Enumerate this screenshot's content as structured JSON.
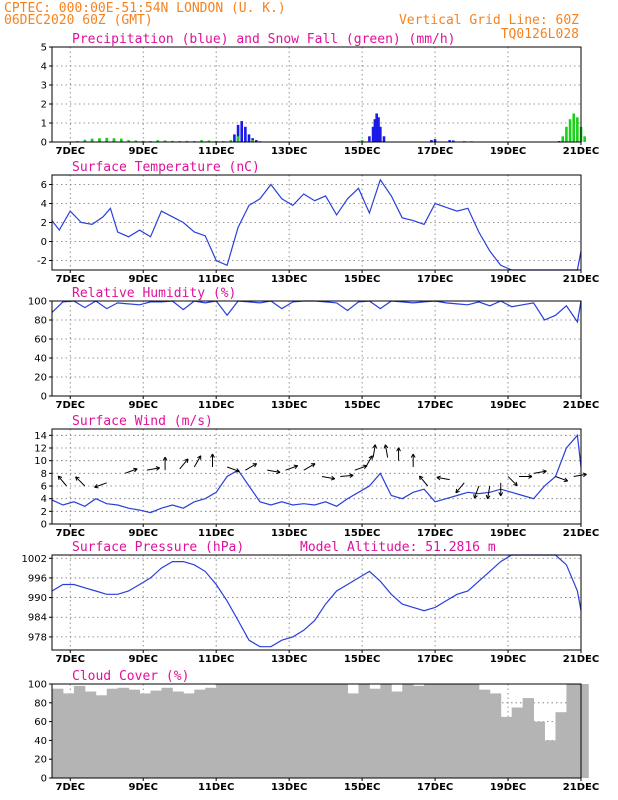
{
  "header": {
    "line1_left": "CPTEC:   000:00E-51:54N   LONDON (U. K.)",
    "line2_left": "06DEC2020 60Z (GMT)",
    "line2_right": "Vertical Grid Line: 60Z",
    "line3_right": "TQ0126L028"
  },
  "x_ticks": [
    "7DEC",
    "9DEC",
    "11DEC",
    "13DEC",
    "15DEC",
    "17DEC",
    "19DEC",
    "21DEC"
  ],
  "colors": {
    "header": "#f5821f",
    "title": "#e0119b",
    "line": "#2a3fdb",
    "rain": "#1a1ae6",
    "snow": "#1ad01a",
    "cloud": "#b4b4b4"
  },
  "chart_data": [
    {
      "type": "bar",
      "title": "Precipitation (blue) and Snow Fall (green) (mm/h)",
      "ylim": [
        0,
        5
      ],
      "yticks": [
        0,
        1,
        2,
        3,
        4,
        5
      ],
      "series": [
        {
          "name": "blue",
          "x": [
            7.4,
            7.6,
            7.8,
            8.0,
            8.2,
            8.4,
            9.0,
            9.4,
            9.6,
            10.6,
            11.5,
            11.6,
            11.7,
            11.8,
            11.9,
            12.0,
            12.1,
            15.2,
            15.3,
            15.35,
            15.4,
            15.45,
            15.5,
            15.6,
            16.9,
            17.0,
            17.4,
            17.5,
            20.4
          ],
          "values": [
            0.05,
            0.1,
            0.12,
            0.15,
            0.12,
            0.08,
            0.05,
            0.06,
            0.05,
            0.05,
            0.4,
            0.9,
            1.1,
            0.8,
            0.4,
            0.2,
            0.1,
            0.3,
            0.8,
            1.2,
            1.5,
            1.3,
            0.8,
            0.3,
            0.1,
            0.15,
            0.1,
            0.08,
            0.05
          ]
        },
        {
          "name": "green",
          "x": [
            7.2,
            7.4,
            7.6,
            7.8,
            8.0,
            8.2,
            8.4,
            8.6,
            8.8,
            9.0,
            9.2,
            9.4,
            9.6,
            9.8,
            10.0,
            10.2,
            10.4,
            10.6,
            10.8,
            11.0,
            11.2,
            11.4,
            11.6,
            12.0,
            12.2,
            14.9,
            15.0,
            15.2,
            17.8,
            18.0,
            20.5,
            20.6,
            20.7,
            20.8,
            20.9,
            21.0,
            21.1
          ],
          "values": [
            0.05,
            0.12,
            0.18,
            0.2,
            0.22,
            0.2,
            0.18,
            0.1,
            0.08,
            0.06,
            0.05,
            0.1,
            0.08,
            0.06,
            0.05,
            0.06,
            0.05,
            0.1,
            0.08,
            0.06,
            0.05,
            0.1,
            0.3,
            0.1,
            0.05,
            0.05,
            0.1,
            0.05,
            0.05,
            0.04,
            0.3,
            0.8,
            1.2,
            1.5,
            1.3,
            0.8,
            0.3
          ]
        }
      ]
    },
    {
      "type": "line",
      "title": "Surface Temperature (nC)",
      "ylim": [
        -3,
        7
      ],
      "yticks": [
        -2,
        0,
        2,
        4,
        6
      ],
      "x": [
        6.5,
        6.7,
        7.0,
        7.3,
        7.6,
        7.9,
        8.1,
        8.3,
        8.6,
        8.9,
        9.2,
        9.5,
        9.8,
        10.1,
        10.4,
        10.7,
        11.0,
        11.3,
        11.6,
        11.9,
        12.2,
        12.5,
        12.8,
        13.1,
        13.4,
        13.7,
        14.0,
        14.3,
        14.6,
        14.9,
        15.2,
        15.5,
        15.8,
        16.1,
        16.4,
        16.7,
        17.0,
        17.3,
        17.6,
        17.9,
        18.2,
        18.5,
        18.8,
        19.1,
        19.4,
        19.7,
        20.0,
        20.3,
        20.6,
        20.9,
        21.0
      ],
      "values": [
        2.2,
        1.2,
        3.2,
        2.0,
        1.8,
        2.6,
        3.5,
        1.0,
        0.5,
        1.2,
        0.5,
        3.2,
        2.6,
        2.0,
        1.0,
        0.6,
        -2.0,
        -2.5,
        1.5,
        3.8,
        4.5,
        6.0,
        4.5,
        3.8,
        5.0,
        4.3,
        4.8,
        2.8,
        4.5,
        5.6,
        3.0,
        6.5,
        4.8,
        2.5,
        2.2,
        1.8,
        4.0,
        3.6,
        3.2,
        3.5,
        1.0,
        -1.0,
        -2.5,
        -3.0,
        -3.0,
        -3.0,
        -3.0,
        -3.0,
        -3.0,
        -3.0,
        -1.0
      ]
    },
    {
      "type": "line",
      "title": "Relative Humidity (%)",
      "ylim": [
        0,
        100
      ],
      "yticks": [
        0,
        20,
        40,
        60,
        80,
        100
      ],
      "x": [
        6.5,
        6.8,
        7.1,
        7.4,
        7.7,
        8.0,
        8.3,
        8.6,
        8.9,
        9.2,
        9.5,
        9.8,
        10.1,
        10.4,
        10.7,
        11.0,
        11.3,
        11.6,
        11.9,
        12.2,
        12.5,
        12.8,
        13.1,
        13.4,
        13.7,
        14.0,
        14.3,
        14.6,
        14.9,
        15.2,
        15.5,
        15.8,
        16.1,
        16.4,
        16.7,
        17.0,
        17.3,
        17.6,
        17.9,
        18.2,
        18.5,
        18.8,
        19.1,
        19.4,
        19.7,
        20.0,
        20.3,
        20.6,
        20.9,
        21.0
      ],
      "values": [
        88,
        99,
        100,
        93,
        100,
        92,
        98,
        97,
        96,
        99,
        99,
        100,
        91,
        100,
        98,
        100,
        85,
        100,
        99,
        98,
        100,
        92,
        99,
        100,
        100,
        99,
        98,
        90,
        99,
        100,
        92,
        100,
        99,
        98,
        99,
        100,
        98,
        97,
        96,
        99,
        95,
        100,
        94,
        96,
        98,
        80,
        85,
        95,
        78,
        100
      ]
    },
    {
      "type": "line",
      "title": "Surface Wind (m/s)",
      "ylim": [
        0,
        15
      ],
      "yticks": [
        0,
        2,
        4,
        6,
        8,
        10,
        12,
        14
      ],
      "x": [
        6.5,
        6.8,
        7.1,
        7.4,
        7.7,
        8.0,
        8.3,
        8.6,
        8.9,
        9.2,
        9.5,
        9.8,
        10.1,
        10.4,
        10.7,
        11.0,
        11.3,
        11.6,
        11.9,
        12.2,
        12.5,
        12.8,
        13.1,
        13.4,
        13.7,
        14.0,
        14.3,
        14.6,
        14.9,
        15.2,
        15.5,
        15.8,
        16.1,
        16.4,
        16.7,
        17.0,
        17.3,
        17.6,
        17.9,
        18.2,
        18.5,
        18.8,
        19.1,
        19.4,
        19.7,
        20.0,
        20.3,
        20.6,
        20.9,
        21.0
      ],
      "values": [
        3.8,
        3.0,
        3.5,
        2.8,
        4.0,
        3.2,
        3.0,
        2.5,
        2.2,
        1.8,
        2.5,
        3.0,
        2.5,
        3.5,
        4.0,
        5.0,
        7.5,
        8.5,
        6.0,
        3.5,
        3.0,
        3.5,
        3.0,
        3.2,
        3.0,
        3.5,
        2.8,
        4.0,
        5.0,
        6.0,
        8.0,
        4.5,
        4.0,
        5.0,
        5.5,
        3.5,
        4.0,
        4.5,
        5.0,
        4.8,
        5.0,
        5.5,
        5.0,
        4.5,
        4.0,
        6.0,
        7.5,
        12.0,
        14.0,
        9.0
      ]
    },
    {
      "type": "line",
      "title": "Surface Pressure (hPa)",
      "subtitle": "Model Altitude: 51.2816  m",
      "ylim": [
        974,
        1003
      ],
      "yticks": [
        978,
        984,
        990,
        996,
        1002
      ],
      "x": [
        6.5,
        6.8,
        7.1,
        7.4,
        7.7,
        8.0,
        8.3,
        8.6,
        8.9,
        9.2,
        9.5,
        9.8,
        10.1,
        10.4,
        10.7,
        11.0,
        11.3,
        11.6,
        11.9,
        12.2,
        12.5,
        12.8,
        13.1,
        13.4,
        13.7,
        14.0,
        14.3,
        14.6,
        14.9,
        15.2,
        15.5,
        15.8,
        16.1,
        16.4,
        16.7,
        17.0,
        17.3,
        17.6,
        17.9,
        18.2,
        18.5,
        18.8,
        19.1,
        19.4,
        19.7,
        20.0,
        20.3,
        20.6,
        20.9,
        21.0
      ],
      "values": [
        992,
        994,
        994,
        993,
        992,
        991,
        991,
        992,
        994,
        996,
        999,
        1001,
        1001,
        1000,
        998,
        994,
        989,
        983,
        977,
        975,
        975,
        977,
        978,
        980,
        983,
        988,
        992,
        994,
        996,
        998,
        995,
        991,
        988,
        987,
        986,
        987,
        989,
        991,
        992,
        995,
        998,
        1001,
        1003,
        1003,
        1003,
        1003,
        1003,
        1000,
        992,
        986
      ]
    },
    {
      "type": "bar",
      "title": "Cloud Cover (%)",
      "ylim": [
        0,
        100
      ],
      "yticks": [
        0,
        20,
        40,
        60,
        80,
        100
      ],
      "x": [
        6.5,
        6.8,
        7.1,
        7.4,
        7.7,
        8.0,
        8.3,
        8.6,
        8.9,
        9.2,
        9.5,
        9.8,
        10.1,
        10.4,
        10.7,
        11.0,
        11.3,
        11.6,
        11.9,
        12.2,
        12.5,
        12.8,
        13.1,
        13.4,
        13.7,
        14.0,
        14.3,
        14.6,
        14.9,
        15.2,
        15.5,
        15.8,
        16.1,
        16.4,
        16.7,
        17.0,
        17.3,
        17.6,
        17.9,
        18.2,
        18.5,
        18.8,
        19.1,
        19.4,
        19.7,
        20.0,
        20.3,
        20.6,
        20.9
      ],
      "values": [
        95,
        90,
        98,
        92,
        88,
        95,
        96,
        94,
        90,
        93,
        96,
        92,
        90,
        94,
        96,
        100,
        100,
        100,
        100,
        100,
        100,
        100,
        100,
        100,
        100,
        100,
        100,
        90,
        100,
        95,
        100,
        92,
        100,
        98,
        100,
        100,
        100,
        100,
        100,
        94,
        90,
        65,
        75,
        85,
        60,
        40,
        70,
        100,
        100
      ]
    }
  ],
  "wind_arrows": {
    "x": [
      6.9,
      7.4,
      8.0,
      8.5,
      9.1,
      9.6,
      10.0,
      10.4,
      10.9,
      11.3,
      11.8,
      12.4,
      12.9,
      13.4,
      13.9,
      14.4,
      14.8,
      15.1,
      15.3,
      15.7,
      16.0,
      16.4,
      16.8,
      17.4,
      17.8,
      18.2,
      18.5,
      18.8,
      19.0,
      19.3,
      19.7,
      20.3,
      20.8
    ],
    "y": [
      6.0,
      6.0,
      6.5,
      8.0,
      8.5,
      8.5,
      8.7,
      9.0,
      9.0,
      9.0,
      8.5,
      8.5,
      8.5,
      8.5,
      7.5,
      7.5,
      8.5,
      9.0,
      10.5,
      10.5,
      10.0,
      9.0,
      6.0,
      7.0,
      6.5,
      6.0,
      6.0,
      6.5,
      7.5,
      7.5,
      8.0,
      7.5,
      7.5
    ],
    "angle_deg": [
      -130,
      -135,
      160,
      -20,
      -10,
      -90,
      -50,
      -60,
      -90,
      20,
      -30,
      10,
      -20,
      -30,
      10,
      -5,
      -20,
      -60,
      -80,
      -100,
      -90,
      -90,
      -130,
      -170,
      130,
      110,
      100,
      90,
      45,
      0,
      -10,
      20,
      -10
    ]
  }
}
